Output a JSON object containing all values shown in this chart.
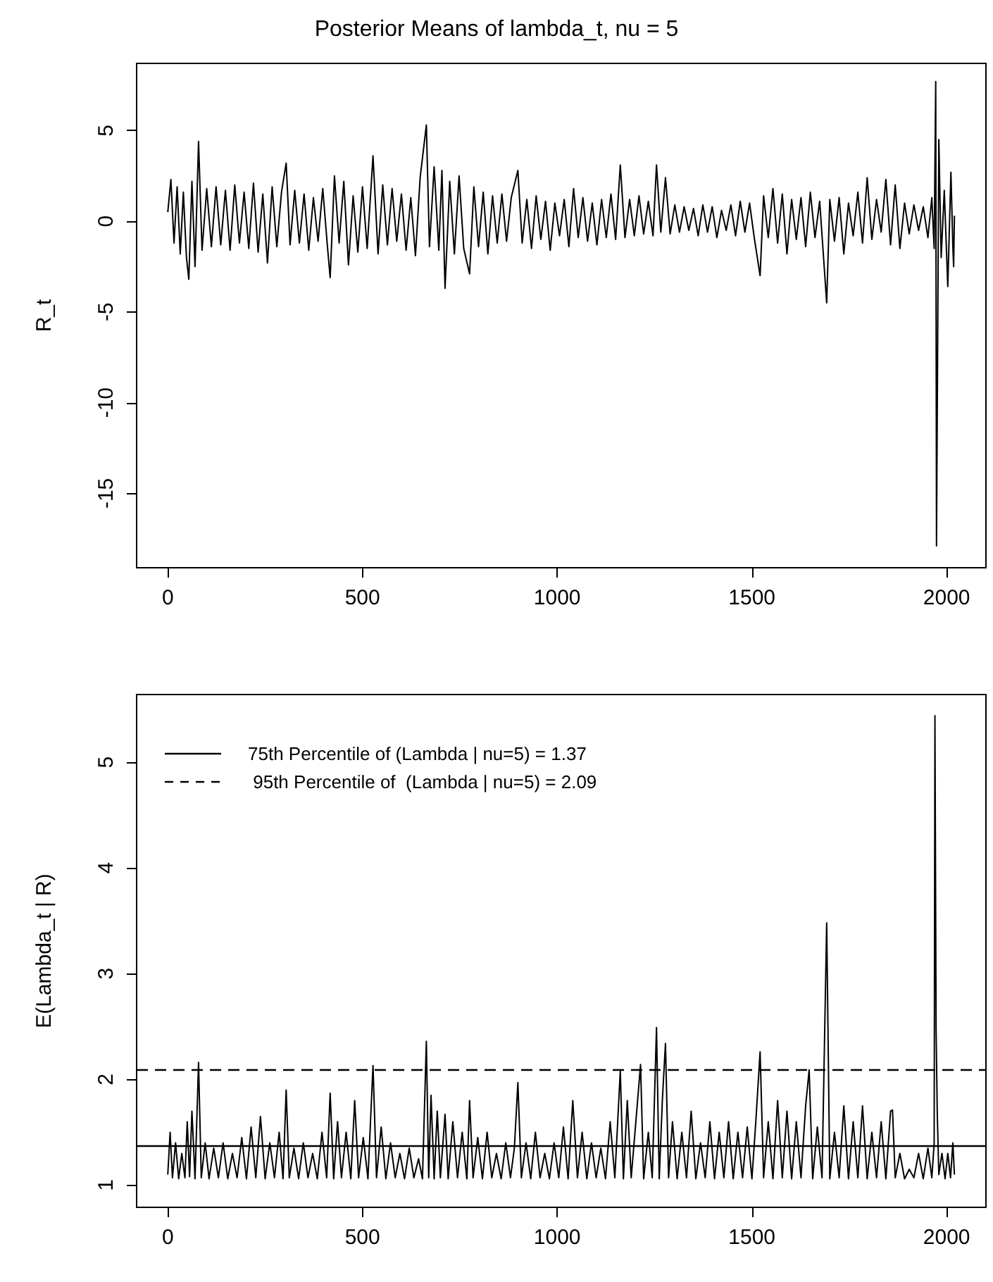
{
  "chart_data": [
    {
      "type": "line",
      "title": "Posterior Means of lambda_t, nu = 5",
      "ylabel": "R_t",
      "xlim": [
        -80,
        2101
      ],
      "xticks": [
        0,
        500,
        1000,
        1500,
        2000
      ],
      "ylim": [
        -19.1,
        8.7
      ],
      "yticks": [
        -15,
        -10,
        -5,
        0,
        5
      ],
      "grid": false,
      "marker": "none",
      "line_style": "solid",
      "x": [
        0,
        8,
        16,
        24,
        32,
        40,
        48,
        54,
        62,
        70,
        79,
        88,
        100,
        112,
        124,
        136,
        148,
        160,
        172,
        184,
        196,
        208,
        220,
        232,
        244,
        256,
        268,
        280,
        292,
        304,
        314,
        326,
        338,
        350,
        362,
        374,
        386,
        398,
        410,
        417,
        428,
        440,
        452,
        464,
        476,
        488,
        500,
        512,
        527,
        540,
        552,
        564,
        576,
        588,
        600,
        612,
        624,
        636,
        648,
        664,
        672,
        684,
        696,
        704,
        712,
        724,
        736,
        748,
        760,
        775,
        786,
        798,
        810,
        822,
        834,
        846,
        858,
        870,
        882,
        899,
        910,
        922,
        934,
        946,
        958,
        970,
        982,
        994,
        1006,
        1018,
        1030,
        1042,
        1054,
        1066,
        1078,
        1090,
        1102,
        1114,
        1126,
        1138,
        1150,
        1162,
        1174,
        1186,
        1198,
        1210,
        1222,
        1234,
        1246,
        1255,
        1266,
        1278,
        1290,
        1302,
        1314,
        1326,
        1338,
        1350,
        1362,
        1374,
        1386,
        1398,
        1410,
        1422,
        1434,
        1446,
        1458,
        1470,
        1482,
        1494,
        1506,
        1521,
        1530,
        1542,
        1554,
        1566,
        1578,
        1590,
        1602,
        1614,
        1626,
        1638,
        1650,
        1662,
        1674,
        1692,
        1700,
        1712,
        1724,
        1736,
        1748,
        1760,
        1772,
        1784,
        1796,
        1808,
        1820,
        1832,
        1844,
        1856,
        1868,
        1880,
        1892,
        1904,
        1916,
        1928,
        1940,
        1952,
        1962,
        1968,
        1972,
        1974,
        1977,
        1980,
        1986,
        1994,
        2003,
        2011,
        2016,
        2018,
        2020
      ],
      "series": [
        {
          "color": "#000000",
          "values": [
            0.5,
            2.3,
            -1.2,
            1.9,
            -1.8,
            1.6,
            -2.0,
            -3.2,
            2.2,
            -2.5,
            4.4,
            -1.6,
            1.8,
            -1.4,
            1.9,
            -1.3,
            1.7,
            -1.6,
            2.0,
            -1.2,
            1.6,
            -1.5,
            2.1,
            -1.7,
            1.5,
            -2.3,
            1.9,
            -1.4,
            1.6,
            3.2,
            -1.3,
            1.7,
            -1.2,
            1.5,
            -1.6,
            1.3,
            -1.1,
            1.8,
            -1.4,
            -3.1,
            2.5,
            -1.2,
            2.2,
            -2.4,
            1.4,
            -1.7,
            1.9,
            -1.5,
            3.6,
            -1.8,
            2.0,
            -1.3,
            1.8,
            -1.1,
            1.5,
            -1.6,
            1.3,
            -1.9,
            2.4,
            5.3,
            -1.4,
            3.0,
            -1.6,
            2.8,
            -3.7,
            2.2,
            -1.8,
            2.5,
            -1.5,
            -2.9,
            1.9,
            -1.4,
            1.6,
            -1.8,
            1.4,
            -1.2,
            1.5,
            -1.1,
            1.3,
            2.8,
            -1.2,
            1.2,
            -1.5,
            1.4,
            -1.0,
            1.1,
            -1.6,
            1.0,
            -0.8,
            1.2,
            -1.4,
            1.8,
            -0.9,
            1.3,
            -1.1,
            1.0,
            -1.3,
            1.2,
            -0.9,
            1.5,
            -1.0,
            3.1,
            -0.9,
            1.2,
            -0.8,
            1.4,
            -0.7,
            1.1,
            -0.8,
            3.1,
            -0.6,
            2.4,
            -0.7,
            0.9,
            -0.6,
            0.8,
            -0.5,
            0.7,
            -0.8,
            0.9,
            -0.6,
            0.8,
            -0.9,
            0.6,
            -0.5,
            0.9,
            -0.8,
            1.1,
            -0.6,
            1.0,
            -0.9,
            -3.0,
            1.4,
            -0.9,
            1.8,
            -1.2,
            1.5,
            -1.8,
            1.2,
            -1.0,
            1.3,
            -1.4,
            1.6,
            -0.9,
            1.1,
            -4.5,
            1.2,
            -1.1,
            1.3,
            -1.8,
            1.0,
            -0.8,
            1.6,
            -1.2,
            2.4,
            -1.0,
            1.2,
            -0.6,
            2.3,
            -1.3,
            2.0,
            -1.5,
            1.0,
            -0.7,
            0.9,
            -0.5,
            0.8,
            -0.9,
            1.3,
            -1.5,
            7.7,
            -17.9,
            -6.7,
            4.5,
            -2.0,
            1.7,
            -3.6,
            2.7,
            -1.4,
            -2.5,
            0.3
          ]
        }
      ]
    },
    {
      "type": "line",
      "ylabel": "E(Lambda_t | R)",
      "xlim": [
        -80,
        2101
      ],
      "xticks": [
        0,
        500,
        1000,
        1500,
        2000
      ],
      "ylim": [
        0.79,
        5.64
      ],
      "yticks": [
        1,
        2,
        3,
        4,
        5
      ],
      "grid": false,
      "legend": "top left",
      "marker": "none",
      "line_style": "solid",
      "x": [
        0,
        6,
        12,
        20,
        28,
        36,
        44,
        50,
        56,
        62,
        70,
        79,
        86,
        96,
        106,
        118,
        130,
        142,
        154,
        166,
        178,
        190,
        202,
        214,
        226,
        238,
        250,
        262,
        274,
        286,
        296,
        304,
        312,
        324,
        336,
        348,
        360,
        372,
        384,
        396,
        408,
        417,
        426,
        436,
        446,
        458,
        470,
        480,
        490,
        502,
        514,
        527,
        536,
        548,
        560,
        572,
        584,
        596,
        608,
        620,
        632,
        644,
        654,
        664,
        670,
        676,
        684,
        692,
        700,
        712,
        720,
        732,
        744,
        756,
        768,
        775,
        784,
        796,
        808,
        820,
        832,
        844,
        856,
        868,
        880,
        890,
        899,
        908,
        920,
        932,
        944,
        956,
        968,
        980,
        992,
        1004,
        1016,
        1028,
        1040,
        1052,
        1064,
        1076,
        1088,
        1100,
        1112,
        1124,
        1136,
        1148,
        1162,
        1170,
        1180,
        1190,
        1202,
        1214,
        1222,
        1234,
        1244,
        1255,
        1262,
        1270,
        1278,
        1286,
        1296,
        1308,
        1320,
        1332,
        1344,
        1356,
        1368,
        1380,
        1392,
        1404,
        1416,
        1428,
        1440,
        1452,
        1464,
        1476,
        1488,
        1500,
        1510,
        1521,
        1530,
        1542,
        1554,
        1566,
        1578,
        1590,
        1602,
        1614,
        1626,
        1638,
        1647,
        1656,
        1668,
        1680,
        1692,
        1700,
        1712,
        1724,
        1736,
        1748,
        1760,
        1772,
        1784,
        1796,
        1808,
        1820,
        1832,
        1844,
        1856,
        1861,
        1868,
        1880,
        1892,
        1904,
        1916,
        1928,
        1940,
        1952,
        1962,
        1968,
        1970,
        1973,
        1976,
        1980,
        1988,
        1996,
        2003,
        2010,
        2016,
        2020
      ],
      "series": [
        {
          "color": "#000000",
          "values": [
            1.1,
            1.5,
            1.07,
            1.4,
            1.06,
            1.3,
            1.07,
            1.6,
            1.08,
            1.7,
            1.06,
            2.16,
            1.07,
            1.4,
            1.06,
            1.35,
            1.07,
            1.4,
            1.06,
            1.3,
            1.07,
            1.45,
            1.06,
            1.55,
            1.07,
            1.65,
            1.06,
            1.4,
            1.07,
            1.5,
            1.06,
            1.9,
            1.07,
            1.35,
            1.06,
            1.4,
            1.07,
            1.3,
            1.06,
            1.5,
            1.07,
            1.87,
            1.06,
            1.6,
            1.07,
            1.5,
            1.06,
            1.8,
            1.07,
            1.45,
            1.06,
            2.13,
            1.07,
            1.55,
            1.06,
            1.4,
            1.07,
            1.3,
            1.06,
            1.35,
            1.07,
            1.25,
            1.06,
            2.36,
            1.07,
            1.85,
            1.06,
            1.7,
            1.07,
            1.67,
            1.06,
            1.6,
            1.07,
            1.5,
            1.06,
            1.8,
            1.07,
            1.45,
            1.06,
            1.5,
            1.07,
            1.3,
            1.06,
            1.4,
            1.07,
            1.35,
            1.97,
            1.07,
            1.4,
            1.06,
            1.5,
            1.07,
            1.3,
            1.06,
            1.4,
            1.07,
            1.55,
            1.06,
            1.8,
            1.07,
            1.5,
            1.06,
            1.4,
            1.07,
            1.35,
            1.06,
            1.6,
            1.07,
            2.08,
            1.06,
            1.8,
            1.07,
            1.6,
            2.14,
            1.06,
            1.5,
            1.07,
            2.49,
            1.06,
            1.8,
            2.34,
            1.07,
            1.6,
            1.06,
            1.5,
            1.07,
            1.7,
            1.06,
            1.4,
            1.07,
            1.6,
            1.06,
            1.5,
            1.07,
            1.6,
            1.06,
            1.5,
            1.07,
            1.55,
            1.06,
            1.6,
            2.26,
            1.07,
            1.6,
            1.06,
            1.8,
            1.07,
            1.7,
            1.06,
            1.6,
            1.07,
            1.75,
            2.09,
            1.06,
            1.55,
            1.07,
            3.48,
            1.06,
            1.5,
            1.07,
            1.75,
            1.06,
            1.6,
            1.07,
            1.75,
            1.06,
            1.5,
            1.07,
            1.6,
            1.06,
            1.7,
            1.71,
            1.07,
            1.3,
            1.06,
            1.15,
            1.07,
            1.3,
            1.06,
            1.35,
            1.07,
            1.4,
            5.44,
            2.47,
            1.67,
            1.1,
            1.3,
            1.06,
            1.3,
            1.07,
            1.4,
            1.1
          ]
        }
      ],
      "ref_lines": [
        {
          "axis": "y",
          "value": 1.37,
          "label": "75th Percentile of (Lambda | nu=5) = 1.37",
          "color": "#000000",
          "line_style": "solid"
        },
        {
          "axis": "y",
          "value": 2.09,
          "label": " 95th Percentile of  (Lambda | nu=5) = 2.09",
          "color": "#000000",
          "line_style": "dashed"
        }
      ]
    }
  ]
}
